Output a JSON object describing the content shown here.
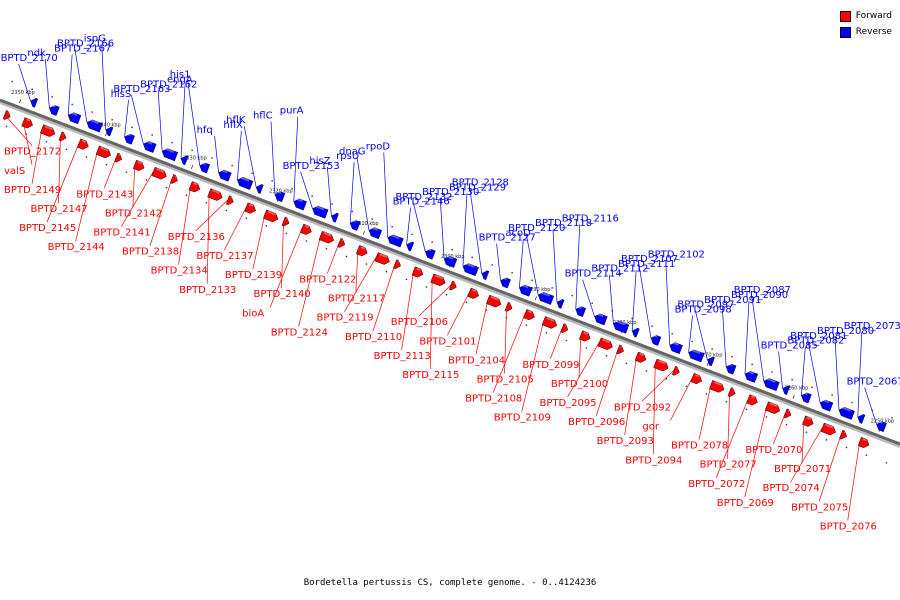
{
  "caption": "Bordetella pertussis CS, complete genome. - 0..4124236",
  "legend": [
    {
      "label": "Forward",
      "color": "#ff0000"
    },
    {
      "label": "Reverse",
      "color": "#0000ff"
    }
  ],
  "colors": {
    "forward": "#ff0000",
    "reverse": "#0000ff",
    "backbone": "#666666"
  },
  "ticks": [
    "2250 kbp",
    "2260 kbp",
    "2270 kbp",
    "2280 kbp",
    "2290 kbp",
    "2300 kbp",
    "2310 kbp",
    "2320 kbp",
    "2330 kbp",
    "2340 kbp",
    "2350 kbp"
  ],
  "reverse_labels": [
    "BPTD_2170",
    "ndk",
    "BPTD_2167",
    "BPTD_2166",
    "ispG",
    "hisS",
    "BPTD_2163",
    "BPTD_2162",
    "engA",
    "his1",
    "hfq",
    "hflX",
    "hflK",
    "hflC",
    "purA",
    "BPTD_2153",
    "hisZ",
    "rpsU",
    "dnaG",
    "rpoD",
    "BPTD_2146",
    "BPTD_2132",
    "BPTD_2130",
    "BPTD_2129",
    "BPTD_2128",
    "BPTD_2127",
    "acoD",
    "BPTD_2120",
    "BPTD_2118",
    "BPTD_2116",
    "BPTD_2114",
    "BPTD_2112",
    "BPTD_2111",
    "BPTD_2107",
    "BPTD_2102",
    "BPTD_2098",
    "BPTD_2097",
    "BPTD_2091",
    "BPTD_2090",
    "BPTD_2087",
    "BPTD_2085",
    "BPTD_2082",
    "BPTD_2081",
    "BPTD_2080",
    "BPTD_2073",
    "BPTD_2067"
  ],
  "forward_labels": [
    "BPTD_2172",
    "valS",
    "BPTD_2149",
    "BPTD_2147",
    "BPTD_2145",
    "BPTD_2144",
    "BPTD_2143",
    "BPTD_2142",
    "BPTD_2141",
    "BPTD_2138",
    "BPTD_2134",
    "BPTD_2133",
    "BPTD_2136",
    "BPTD_2137",
    "BPTD_2139",
    "BPTD_2140",
    "bioA",
    "BPTD_2124",
    "BPTD_2122",
    "BPTD_2117",
    "BPTD_2119",
    "BPTD_2110",
    "BPTD_2113",
    "BPTD_2115",
    "BPTD_2106",
    "BPTD_2101",
    "BPTD_2104",
    "BPTD_2105",
    "BPTD_2108",
    "BPTD_2109",
    "BPTD_2099",
    "BPTD_2100",
    "BPTD_2095",
    "BPTD_2096",
    "BPTD_2093",
    "BPTD_2094",
    "BPTD_2092",
    "gor",
    "BPTD_2078",
    "BPTD_2077",
    "BPTD_2072",
    "BPTD_2069",
    "BPTD_2070",
    "BPTD_2071",
    "BPTD_2074",
    "BPTD_2075",
    "BPTD_2076"
  ]
}
